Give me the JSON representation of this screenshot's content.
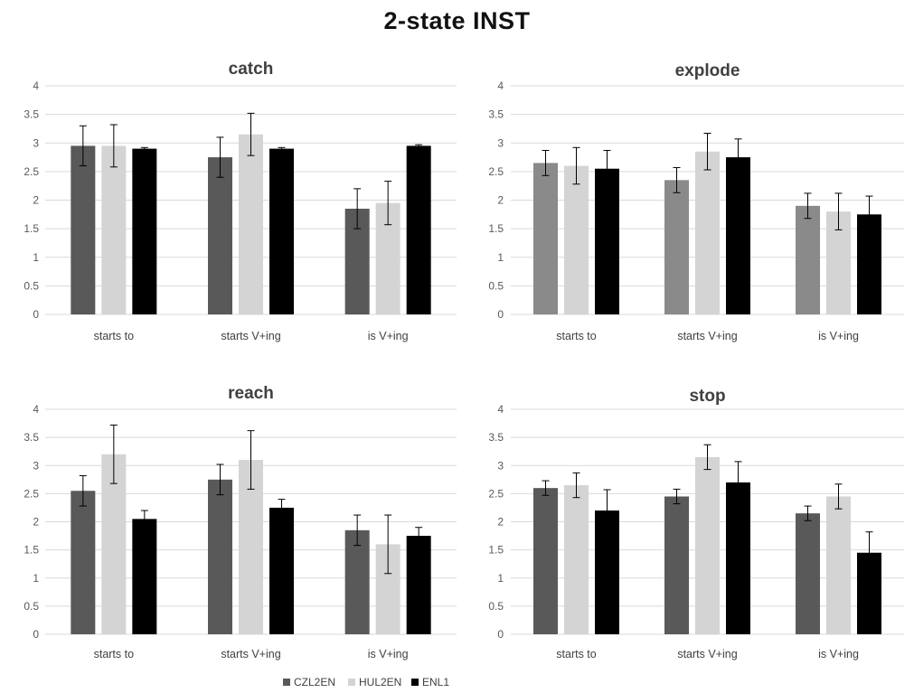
{
  "title": "2-state INST",
  "legend": {
    "placement": "bottom-center",
    "entries": [
      "CZL2EN",
      "HUL2EN",
      "ENL1"
    ]
  },
  "colors": {
    "CZL2EN": "#595959",
    "CZL2EN_explode": "#8a8a8a",
    "HUL2EN": "#d4d4d4",
    "ENL1": "#000000",
    "grid": "#d9d9d9",
    "error_bar": "#000000"
  },
  "chart_data": [
    {
      "type": "bar",
      "title": "catch",
      "categories": [
        "starts to",
        "starts V+ing",
        "is V+ing"
      ],
      "ylim": [
        0,
        4
      ],
      "yticks": [
        "0",
        "0.5",
        "1",
        "1.5",
        "2",
        "2.5",
        "3",
        "3.5",
        "4"
      ],
      "grid": true,
      "series": [
        {
          "name": "CZL2EN",
          "values": [
            2.95,
            2.75,
            1.85
          ],
          "err": [
            0.35,
            0.35,
            0.35
          ]
        },
        {
          "name": "HUL2EN",
          "values": [
            2.95,
            3.15,
            1.95
          ],
          "err": [
            0.37,
            0.37,
            0.38
          ]
        },
        {
          "name": "ENL1",
          "values": [
            2.9,
            2.9,
            2.95
          ],
          "err": [
            0.02,
            0.02,
            0.02
          ]
        }
      ]
    },
    {
      "type": "bar",
      "title": "explode",
      "categories": [
        "starts to",
        "starts V+ing",
        "is V+ing"
      ],
      "ylim": [
        0,
        4
      ],
      "yticks": [
        "0",
        "0.5",
        "1",
        "1.5",
        "2",
        "2.5",
        "3",
        "3.5",
        "4"
      ],
      "grid": true,
      "series": [
        {
          "name": "CZL2EN",
          "values": [
            2.65,
            2.35,
            1.9
          ],
          "err": [
            0.22,
            0.22,
            0.22
          ]
        },
        {
          "name": "HUL2EN",
          "values": [
            2.6,
            2.85,
            1.8
          ],
          "err": [
            0.32,
            0.32,
            0.32
          ]
        },
        {
          "name": "ENL1",
          "values": [
            2.55,
            2.75,
            1.75
          ],
          "err": [
            0.32,
            0.32,
            0.32
          ]
        }
      ]
    },
    {
      "type": "bar",
      "title": "reach",
      "categories": [
        "starts to",
        "starts V+ing",
        "is V+ing"
      ],
      "ylim": [
        0,
        4
      ],
      "yticks": [
        "0",
        "0.5",
        "1",
        "1.5",
        "2",
        "2.5",
        "3",
        "3.5",
        "4"
      ],
      "grid": true,
      "series": [
        {
          "name": "CZL2EN",
          "values": [
            2.55,
            2.75,
            1.85
          ],
          "err": [
            0.27,
            0.27,
            0.27
          ]
        },
        {
          "name": "HUL2EN",
          "values": [
            3.2,
            3.1,
            1.6
          ],
          "err": [
            0.52,
            0.52,
            0.52
          ]
        },
        {
          "name": "ENL1",
          "values": [
            2.05,
            2.25,
            1.75
          ],
          "err": [
            0.15,
            0.15,
            0.15
          ]
        }
      ]
    },
    {
      "type": "bar",
      "title": "stop",
      "categories": [
        "starts to",
        "starts V+ing",
        "is V+ing"
      ],
      "ylim": [
        0,
        4
      ],
      "yticks": [
        "0",
        "0.5",
        "1",
        "1.5",
        "2",
        "2.5",
        "3",
        "3.5",
        "4"
      ],
      "grid": true,
      "series": [
        {
          "name": "CZL2EN",
          "values": [
            2.6,
            2.45,
            2.15
          ],
          "err": [
            0.13,
            0.13,
            0.13
          ]
        },
        {
          "name": "HUL2EN",
          "values": [
            2.65,
            3.15,
            2.45
          ],
          "err": [
            0.22,
            0.22,
            0.22
          ]
        },
        {
          "name": "ENL1",
          "values": [
            2.2,
            2.7,
            1.45
          ],
          "err": [
            0.37,
            0.37,
            0.37
          ]
        }
      ]
    }
  ]
}
